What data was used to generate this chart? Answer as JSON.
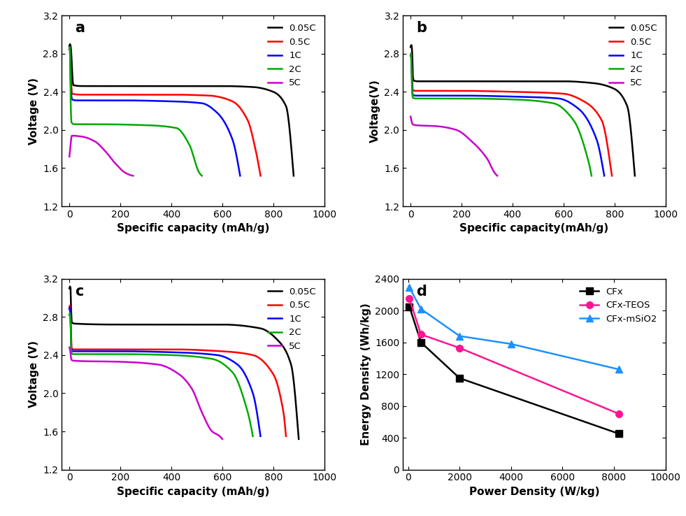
{
  "panel_labels": [
    "a",
    "b",
    "c",
    "d"
  ],
  "legend_labels_5": [
    "0.05C",
    "0.5C",
    "1C",
    "2C",
    "5C"
  ],
  "panel_a": {
    "xlabel": "Specific capacity (mAh/g)",
    "ylabel": "Voltage (V)",
    "xlim": [
      -30,
      1000
    ],
    "ylim": [
      1.2,
      3.2
    ],
    "xticks": [
      0,
      200,
      400,
      600,
      800,
      1000
    ],
    "yticks": [
      1.2,
      1.6,
      2.0,
      2.4,
      2.8,
      3.2
    ],
    "curves": [
      {
        "color": "#000000",
        "points": [
          [
            0,
            2.88
          ],
          [
            2,
            2.9
          ],
          [
            5,
            2.88
          ],
          [
            15,
            2.47
          ],
          [
            50,
            2.46
          ],
          [
            200,
            2.46
          ],
          [
            400,
            2.46
          ],
          [
            600,
            2.46
          ],
          [
            720,
            2.45
          ],
          [
            800,
            2.4
          ],
          [
            850,
            2.25
          ],
          [
            880,
            1.52
          ]
        ]
      },
      {
        "color": "#ff0000",
        "points": [
          [
            0,
            2.85
          ],
          [
            2,
            2.87
          ],
          [
            5,
            2.65
          ],
          [
            10,
            2.38
          ],
          [
            50,
            2.37
          ],
          [
            200,
            2.37
          ],
          [
            400,
            2.37
          ],
          [
            550,
            2.36
          ],
          [
            640,
            2.3
          ],
          [
            700,
            2.1
          ],
          [
            730,
            1.8
          ],
          [
            750,
            1.52
          ]
        ]
      },
      {
        "color": "#0000ff",
        "points": [
          [
            0,
            2.85
          ],
          [
            2,
            2.87
          ],
          [
            5,
            2.5
          ],
          [
            10,
            2.32
          ],
          [
            30,
            2.31
          ],
          [
            200,
            2.31
          ],
          [
            400,
            2.3
          ],
          [
            520,
            2.28
          ],
          [
            580,
            2.18
          ],
          [
            640,
            1.9
          ],
          [
            670,
            1.52
          ]
        ]
      },
      {
        "color": "#00aa00",
        "points": [
          [
            0,
            2.85
          ],
          [
            2,
            2.87
          ],
          [
            5,
            2.3
          ],
          [
            8,
            2.08
          ],
          [
            20,
            2.06
          ],
          [
            100,
            2.06
          ],
          [
            300,
            2.05
          ],
          [
            420,
            2.02
          ],
          [
            470,
            1.85
          ],
          [
            510,
            1.55
          ],
          [
            520,
            1.52
          ]
        ]
      },
      {
        "color": "#cc00cc",
        "points": [
          [
            0,
            1.72
          ],
          [
            10,
            1.94
          ],
          [
            50,
            1.93
          ],
          [
            100,
            1.88
          ],
          [
            140,
            1.78
          ],
          [
            180,
            1.65
          ],
          [
            220,
            1.55
          ],
          [
            250,
            1.52
          ]
        ]
      }
    ]
  },
  "panel_b": {
    "xlabel": "Specific capacity(mAh/g)",
    "ylabel": "Voltage(V)",
    "xlim": [
      -30,
      1000
    ],
    "ylim": [
      1.2,
      3.2
    ],
    "xticks": [
      0,
      200,
      400,
      600,
      800,
      1000
    ],
    "yticks": [
      1.2,
      1.6,
      2.0,
      2.4,
      2.8,
      3.2
    ],
    "curves": [
      {
        "color": "#000000",
        "points": [
          [
            0,
            2.87
          ],
          [
            2,
            2.89
          ],
          [
            5,
            2.88
          ],
          [
            10,
            2.52
          ],
          [
            30,
            2.51
          ],
          [
            200,
            2.51
          ],
          [
            400,
            2.51
          ],
          [
            600,
            2.51
          ],
          [
            720,
            2.49
          ],
          [
            800,
            2.43
          ],
          [
            850,
            2.25
          ],
          [
            880,
            1.52
          ]
        ]
      },
      {
        "color": "#ff0000",
        "points": [
          [
            0,
            2.78
          ],
          [
            2,
            2.8
          ],
          [
            5,
            2.65
          ],
          [
            8,
            2.42
          ],
          [
            20,
            2.41
          ],
          [
            200,
            2.41
          ],
          [
            400,
            2.4
          ],
          [
            600,
            2.38
          ],
          [
            680,
            2.3
          ],
          [
            750,
            2.1
          ],
          [
            790,
            1.52
          ]
        ]
      },
      {
        "color": "#0000ff",
        "points": [
          [
            0,
            2.78
          ],
          [
            2,
            2.8
          ],
          [
            5,
            2.55
          ],
          [
            8,
            2.37
          ],
          [
            20,
            2.36
          ],
          [
            200,
            2.36
          ],
          [
            400,
            2.35
          ],
          [
            580,
            2.33
          ],
          [
            660,
            2.22
          ],
          [
            730,
            1.9
          ],
          [
            760,
            1.52
          ]
        ]
      },
      {
        "color": "#00aa00",
        "points": [
          [
            0,
            2.78
          ],
          [
            2,
            2.8
          ],
          [
            5,
            2.48
          ],
          [
            8,
            2.34
          ],
          [
            20,
            2.33
          ],
          [
            200,
            2.33
          ],
          [
            400,
            2.32
          ],
          [
            560,
            2.28
          ],
          [
            640,
            2.1
          ],
          [
            700,
            1.65
          ],
          [
            710,
            1.52
          ]
        ]
      },
      {
        "color": "#cc00cc",
        "points": [
          [
            0,
            2.14
          ],
          [
            3,
            2.1
          ],
          [
            8,
            2.06
          ],
          [
            20,
            2.05
          ],
          [
            100,
            2.04
          ],
          [
            180,
            2.0
          ],
          [
            240,
            1.88
          ],
          [
            300,
            1.7
          ],
          [
            330,
            1.55
          ],
          [
            340,
            1.52
          ]
        ]
      }
    ]
  },
  "panel_c": {
    "xlabel": "Specific capacity (mAh/g)",
    "ylabel": "Voltage (V)",
    "xlim": [
      -30,
      1000
    ],
    "ylim": [
      1.2,
      3.2
    ],
    "xticks": [
      0,
      200,
      400,
      600,
      800,
      1000
    ],
    "yticks": [
      1.2,
      1.6,
      2.0,
      2.4,
      2.8,
      3.2
    ],
    "curves": [
      {
        "color": "#000000",
        "points": [
          [
            0,
            3.1
          ],
          [
            2,
            3.12
          ],
          [
            5,
            3.1
          ],
          [
            8,
            2.75
          ],
          [
            20,
            2.73
          ],
          [
            200,
            2.72
          ],
          [
            400,
            2.72
          ],
          [
            600,
            2.72
          ],
          [
            750,
            2.68
          ],
          [
            820,
            2.55
          ],
          [
            870,
            2.3
          ],
          [
            900,
            1.52
          ]
        ]
      },
      {
        "color": "#ff0000",
        "points": [
          [
            0,
            2.9
          ],
          [
            2,
            2.92
          ],
          [
            5,
            2.8
          ],
          [
            8,
            2.48
          ],
          [
            15,
            2.46
          ],
          [
            200,
            2.46
          ],
          [
            400,
            2.46
          ],
          [
            600,
            2.44
          ],
          [
            720,
            2.4
          ],
          [
            800,
            2.2
          ],
          [
            840,
            1.8
          ],
          [
            850,
            1.55
          ]
        ]
      },
      {
        "color": "#0000ff",
        "points": [
          [
            0,
            2.88
          ],
          [
            2,
            2.9
          ],
          [
            5,
            2.75
          ],
          [
            8,
            2.45
          ],
          [
            15,
            2.44
          ],
          [
            200,
            2.44
          ],
          [
            400,
            2.43
          ],
          [
            580,
            2.4
          ],
          [
            660,
            2.3
          ],
          [
            720,
            2.0
          ],
          [
            750,
            1.55
          ]
        ]
      },
      {
        "color": "#00aa00",
        "points": [
          [
            0,
            2.82
          ],
          [
            2,
            2.84
          ],
          [
            5,
            2.68
          ],
          [
            8,
            2.42
          ],
          [
            15,
            2.41
          ],
          [
            200,
            2.41
          ],
          [
            400,
            2.4
          ],
          [
            560,
            2.36
          ],
          [
            640,
            2.22
          ],
          [
            700,
            1.8
          ],
          [
            720,
            1.55
          ]
        ]
      },
      {
        "color": "#cc00cc",
        "points": [
          [
            0,
            2.48
          ],
          [
            3,
            2.45
          ],
          [
            8,
            2.35
          ],
          [
            20,
            2.34
          ],
          [
            200,
            2.33
          ],
          [
            350,
            2.3
          ],
          [
            430,
            2.2
          ],
          [
            480,
            2.05
          ],
          [
            520,
            1.8
          ],
          [
            560,
            1.6
          ],
          [
            590,
            1.55
          ],
          [
            600,
            1.52
          ]
        ]
      }
    ]
  },
  "panel_d": {
    "xlabel": "Power Density (W/kg)",
    "ylabel": "Energy Density (Wh/kg)",
    "xlim": [
      -200,
      10000
    ],
    "ylim": [
      0,
      2400
    ],
    "xticks": [
      0,
      2000,
      4000,
      6000,
      8000,
      10000
    ],
    "yticks": [
      0,
      400,
      800,
      1200,
      1600,
      2000,
      2400
    ],
    "series": [
      {
        "label": "CFx",
        "color": "#000000",
        "marker": "s",
        "power": [
          50,
          500,
          2000,
          8200
        ],
        "energy": [
          2050,
          1600,
          1150,
          450
        ]
      },
      {
        "label": "CFx-TEOS",
        "color": "#ff1493",
        "marker": "o",
        "power": [
          50,
          500,
          2000,
          8200
        ],
        "energy": [
          2150,
          1700,
          1530,
          700
        ]
      },
      {
        "label": "CFx-mSiO2",
        "color": "#1e90ff",
        "marker": "^",
        "power": [
          50,
          500,
          2000,
          4000,
          8200
        ],
        "energy": [
          2290,
          2020,
          1680,
          1580,
          1260
        ]
      }
    ]
  }
}
